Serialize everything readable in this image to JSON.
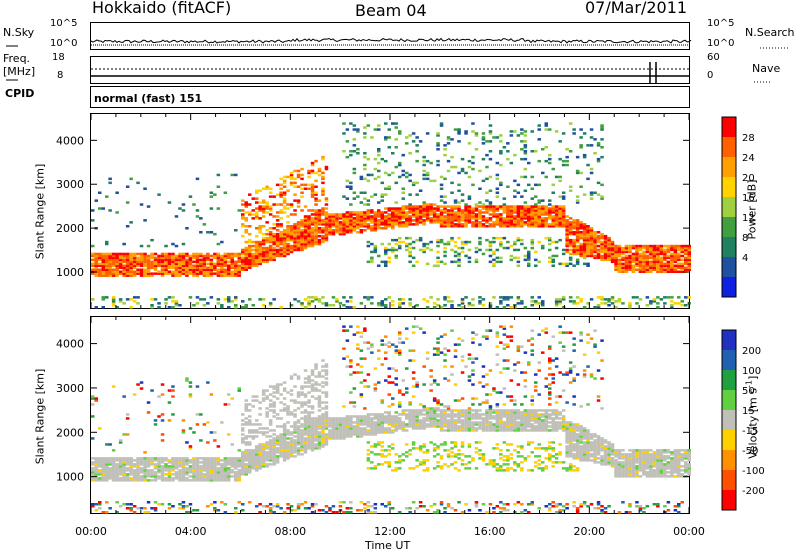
{
  "header": {
    "station": "Hokkaido (fitACF)",
    "beam": "Beam 04",
    "date": "07/Mar/2011"
  },
  "summary": {
    "nsky_label": "N.Sky",
    "nsearch_label": "N.Search",
    "freq_label": "Freq.",
    "freq_unit": "[MHz]",
    "nave_label": "Nave",
    "cpid_label": "CPID",
    "cpid_value": "normal (fast) 151",
    "left_ticks_noise": [
      "10^5",
      "10^0"
    ],
    "right_ticks_noise": [
      "10^5",
      "10^0"
    ],
    "left_ticks_freq": [
      "18",
      "8"
    ],
    "right_ticks_nave": [
      "60",
      "0"
    ]
  },
  "chart_data": [
    {
      "type": "heatmap",
      "name": "power",
      "ylabel": "Slant Range [km]",
      "xlabel": "",
      "ylim": [
        180,
        4600
      ],
      "xlim": [
        0,
        24
      ],
      "y_ticks": [
        "1000",
        "2000",
        "3000",
        "4000"
      ],
      "colorbar_label": "Power [dB]",
      "colorbar_ticks": [
        "28",
        "24",
        "20",
        "16",
        "12",
        "8",
        "4"
      ],
      "colorbar_colors": [
        "#ff0000",
        "#ff6000",
        "#ffa000",
        "#ffd200",
        "#a0d040",
        "#40a040",
        "#208060",
        "#2050a0",
        "#1020e0"
      ]
    },
    {
      "type": "heatmap",
      "name": "velocity",
      "ylabel": "Slant Range [km]",
      "xlabel": "Time UT",
      "ylim": [
        180,
        4600
      ],
      "xlim": [
        0,
        24
      ],
      "x_ticks": [
        "00:00",
        "04:00",
        "08:00",
        "12:00",
        "16:00",
        "20:00",
        "00:00"
      ],
      "y_ticks": [
        "1000",
        "2000",
        "3000",
        "4000"
      ],
      "colorbar_label": "Velocity [m s",
      "colorbar_label_sup": "-1",
      "colorbar_label_end": "]",
      "colorbar_ticks": [
        "200",
        "100",
        "50",
        "15",
        "-15",
        "-50",
        "-100",
        "-200"
      ],
      "colorbar_colors": [
        "#2030c0",
        "#2060b0",
        "#20a040",
        "#60d040",
        "#c0c0b8",
        "#ffd000",
        "#ff9000",
        "#ff5000",
        "#ff0000"
      ]
    }
  ]
}
